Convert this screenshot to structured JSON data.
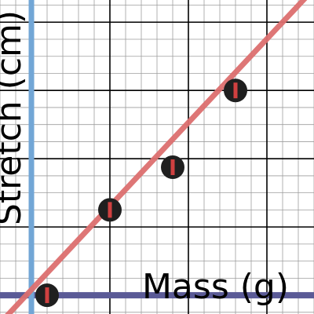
{
  "colors": {
    "background": "#ffffff",
    "minor_grid": "#9e9e9e",
    "major_grid": "#000000",
    "fit_line": "#dc6f6f",
    "x_axis": "#5a5a96",
    "y_axis": "#72a6d6",
    "marker": "#1f1f1f",
    "error_bar": "#d04040"
  },
  "chart_data": {
    "type": "scatter",
    "title": "",
    "xlabel": "Mass (g)",
    "ylabel": "Stretch (cm)",
    "grid": true,
    "x": [
      5,
      25,
      45,
      65
    ],
    "y": [
      0,
      2.5,
      3.75,
      6
    ],
    "fit_line": {
      "slope": 0.098,
      "intercept": 0.16
    },
    "xlim": [
      -10,
      90
    ],
    "ylim": [
      -0.55,
      8.65
    ]
  }
}
